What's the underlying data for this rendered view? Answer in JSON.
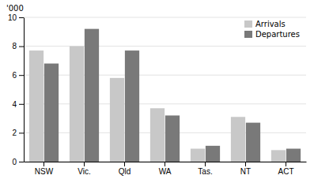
{
  "chart_data": {
    "type": "bar",
    "ylabel": "'000",
    "categories": [
      "NSW",
      "Vic.",
      "Qld",
      "WA",
      "Tas.",
      "NT",
      "ACT"
    ],
    "series": [
      {
        "name": "Arrivals",
        "color": "#c8c8c8",
        "values": [
          7.7,
          8.0,
          5.8,
          3.7,
          0.9,
          3.1,
          0.8
        ]
      },
      {
        "name": "Departures",
        "color": "#797979",
        "values": [
          6.8,
          9.2,
          7.7,
          3.2,
          1.1,
          2.7,
          0.9
        ]
      }
    ],
    "ylim": [
      0,
      10
    ],
    "yticks": [
      0,
      2,
      4,
      6,
      8,
      10
    ],
    "grid": true,
    "legend": "upper right"
  }
}
